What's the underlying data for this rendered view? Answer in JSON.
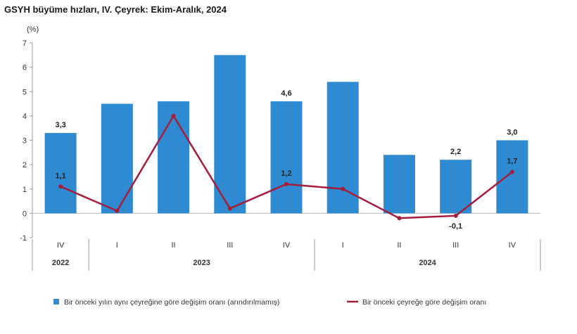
{
  "chart_data": {
    "type": "bar",
    "title": "GSYH büyüme hızları, IV. Çeyrek: Ekim-Aralık, 2024",
    "y_unit": "(%)",
    "ylim": [
      -1,
      7
    ],
    "yticks": [
      -1,
      0,
      1,
      2,
      3,
      4,
      5,
      6,
      7
    ],
    "categories": [
      "IV",
      "I",
      "II",
      "III",
      "IV",
      "I",
      "II",
      "III",
      "IV"
    ],
    "groups": [
      {
        "label": "2022",
        "start": 0,
        "end": 0
      },
      {
        "label": "2023",
        "start": 1,
        "end": 4
      },
      {
        "label": "2024",
        "start": 5,
        "end": 8
      }
    ],
    "grid": false,
    "legend_position": "bottom",
    "series": [
      {
        "name": "Bir önceki yılın aynı çeyreğine göre değişim oranı (arındırılmamış)",
        "type": "bar",
        "color": "#2e8bd2",
        "values": [
          3.3,
          4.5,
          4.6,
          6.5,
          4.6,
          5.4,
          2.4,
          2.2,
          3.0
        ],
        "labels": [
          "3,3",
          "",
          "",
          "",
          "4,6",
          "",
          "",
          "2,2",
          "3,0"
        ]
      },
      {
        "name": "Bir önceki çeyreğe göre değişim oranı",
        "type": "line",
        "color": "#a51d3a",
        "values": [
          1.1,
          0.1,
          4.0,
          0.2,
          1.2,
          1.0,
          -0.2,
          -0.1,
          1.7
        ],
        "labels": [
          "1,1",
          "",
          "",
          "",
          "1,2",
          "",
          "",
          "-0,1",
          "1,7"
        ]
      }
    ]
  }
}
